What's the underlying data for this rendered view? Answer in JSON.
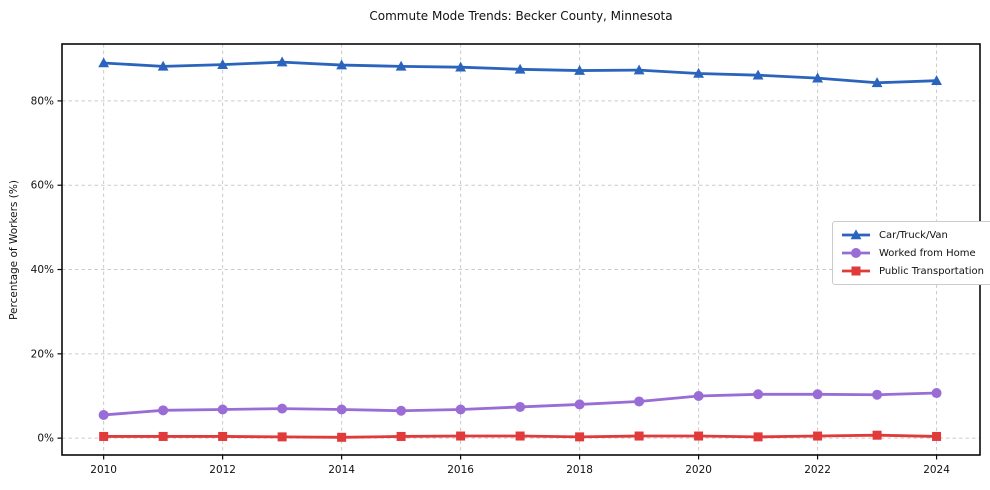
{
  "chart_data": {
    "type": "line",
    "title": "Commute Mode Trends: Becker County, Minnesota",
    "xlabel": "",
    "ylabel": "Percentage of Workers (%)",
    "x": [
      2010,
      2011,
      2012,
      2013,
      2014,
      2015,
      2016,
      2017,
      2018,
      2019,
      2020,
      2021,
      2022,
      2023,
      2024
    ],
    "xticks": [
      2010,
      2012,
      2014,
      2016,
      2018,
      2020,
      2022,
      2024
    ],
    "xtick_labels": [
      "2010",
      "2012",
      "2014",
      "2016",
      "2018",
      "2020",
      "2022",
      "2024"
    ],
    "ytick_values": [
      0,
      20,
      40,
      60,
      80
    ],
    "ytick_labels": [
      "0%",
      "20%",
      "40%",
      "60%",
      "80%"
    ],
    "xlim": [
      2009.3,
      2024.73
    ],
    "ylim": [
      -4,
      93.5
    ],
    "grid": true,
    "grid_style": "dashed",
    "legend_position": "center-right",
    "series": [
      {
        "name": "Car/Truck/Van",
        "color": "#2b64bc",
        "marker": "triangle",
        "values": [
          89.0,
          88.2,
          88.6,
          89.2,
          88.5,
          88.2,
          88.0,
          87.5,
          87.2,
          87.3,
          86.5,
          86.1,
          85.4,
          84.3,
          84.8
        ]
      },
      {
        "name": "Worked from Home",
        "color": "#9a6dd6",
        "marker": "circle",
        "values": [
          5.5,
          6.6,
          6.8,
          7.0,
          6.8,
          6.5,
          6.8,
          7.4,
          8.0,
          8.7,
          10.0,
          10.4,
          10.4,
          10.3,
          10.7
        ]
      },
      {
        "name": "Public Transportation",
        "color": "#e03a3a",
        "marker": "square",
        "values": [
          0.4,
          0.4,
          0.4,
          0.3,
          0.2,
          0.4,
          0.5,
          0.5,
          0.3,
          0.5,
          0.5,
          0.3,
          0.5,
          0.7,
          0.4
        ]
      }
    ]
  }
}
